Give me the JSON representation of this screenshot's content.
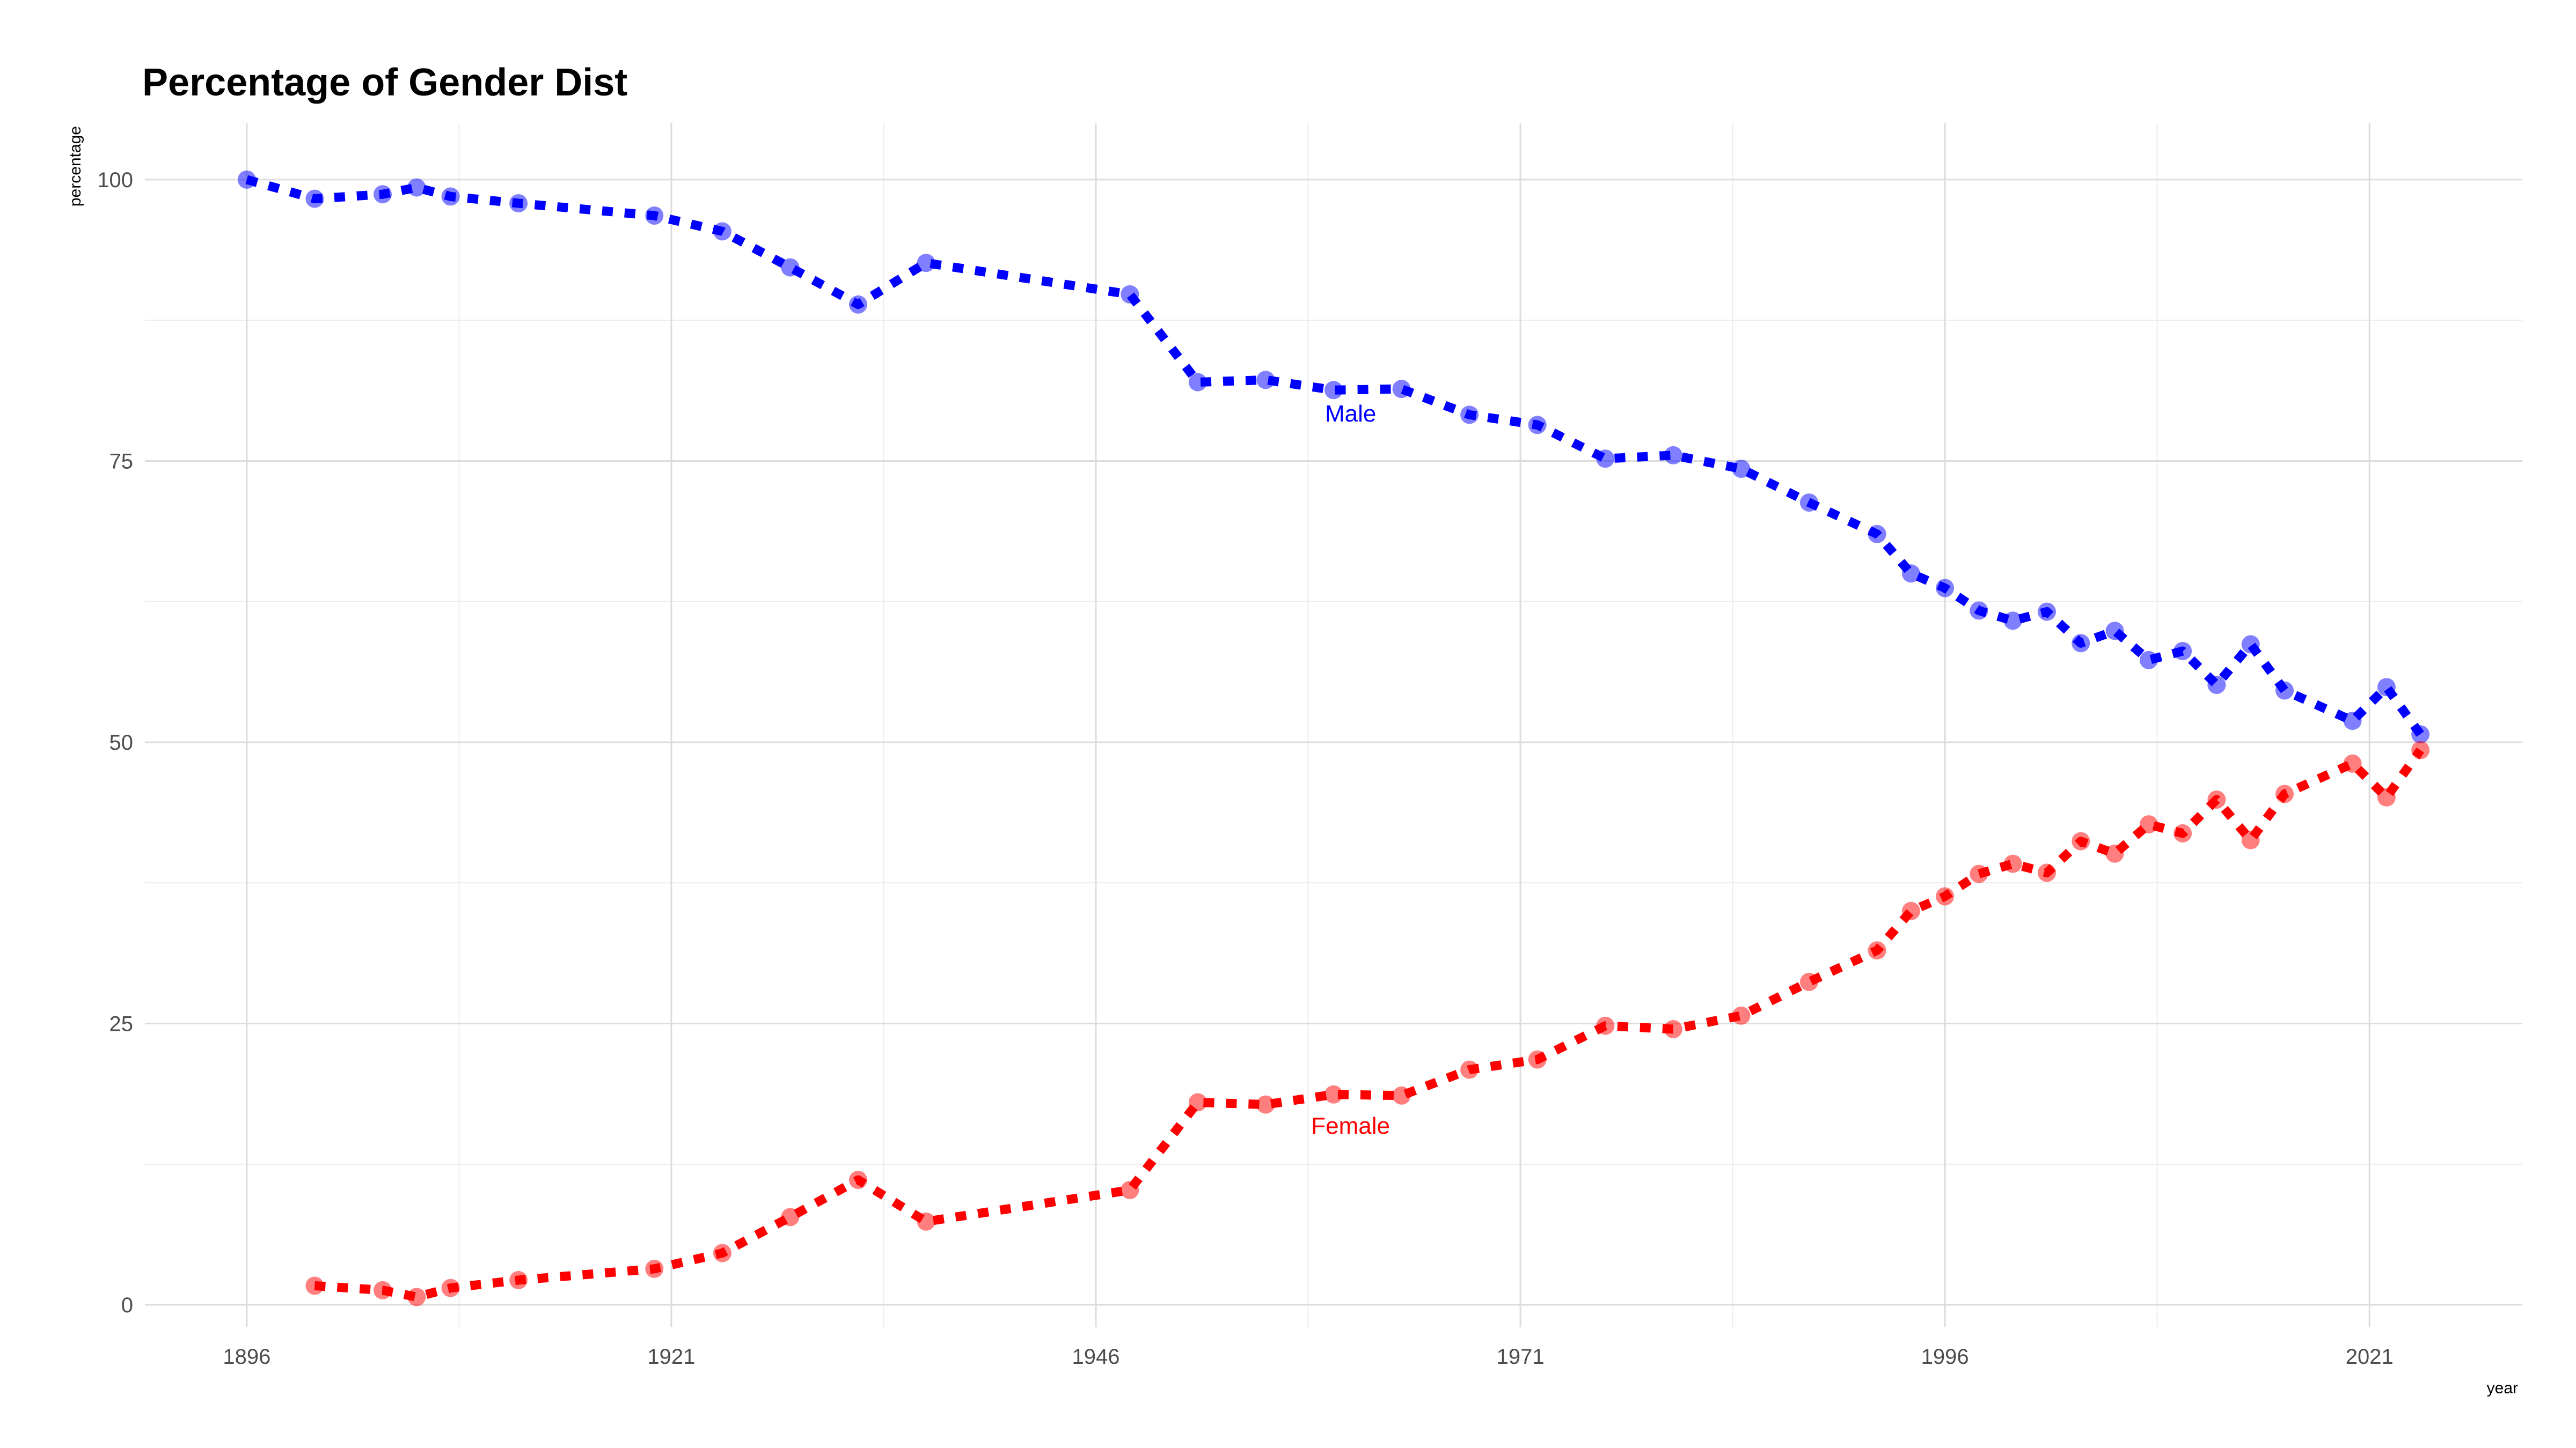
{
  "chart_data": {
    "type": "line",
    "title": "Percentage of Gender Dist",
    "xlabel": "year",
    "ylabel": "percentage",
    "xlim": [
      1890,
      2030
    ],
    "ylim": [
      -2,
      105
    ],
    "x_ticks": [
      1896,
      1921,
      1946,
      1971,
      1996,
      2021
    ],
    "y_ticks": [
      0,
      25,
      50,
      75,
      100
    ],
    "grid": true,
    "legend": "none",
    "series": [
      {
        "name": "Male",
        "color": "#0000ff",
        "label_at": [
          1961,
          78.5
        ],
        "points": [
          [
            1896,
            100
          ],
          [
            1900,
            98.3
          ],
          [
            1904,
            98.7
          ],
          [
            1906,
            99.3
          ],
          [
            1908,
            98.5
          ],
          [
            1912,
            97.9
          ],
          [
            1920,
            96.8
          ],
          [
            1924,
            95.4
          ],
          [
            1928,
            92.2
          ],
          [
            1932,
            88.9
          ],
          [
            1936,
            92.6
          ],
          [
            1948,
            89.8
          ],
          [
            1952,
            82.0
          ],
          [
            1956,
            82.2
          ],
          [
            1960,
            81.3
          ],
          [
            1964,
            81.4
          ],
          [
            1968,
            79.1
          ],
          [
            1972,
            78.2
          ],
          [
            1976,
            75.2
          ],
          [
            1980,
            75.5
          ],
          [
            1984,
            74.3
          ],
          [
            1988,
            71.3
          ],
          [
            1992,
            68.5
          ],
          [
            1994,
            65.0
          ],
          [
            1996,
            63.7
          ],
          [
            1998,
            61.7
          ],
          [
            2000,
            60.8
          ],
          [
            2002,
            61.6
          ],
          [
            2004,
            58.8
          ],
          [
            2006,
            59.9
          ],
          [
            2008,
            57.3
          ],
          [
            2010,
            58.1
          ],
          [
            2012,
            55.1
          ],
          [
            2014,
            58.7
          ],
          [
            2016,
            54.6
          ],
          [
            2020,
            51.9
          ],
          [
            2022,
            54.9
          ],
          [
            2024,
            50.7
          ]
        ]
      },
      {
        "name": "Female",
        "color": "#ff0000",
        "label_at": [
          1961,
          15.2
        ],
        "points": [
          [
            1900,
            1.7
          ],
          [
            1904,
            1.3
          ],
          [
            1906,
            0.7
          ],
          [
            1908,
            1.5
          ],
          [
            1912,
            2.2
          ],
          [
            1920,
            3.2
          ],
          [
            1924,
            4.6
          ],
          [
            1928,
            7.8
          ],
          [
            1932,
            11.1
          ],
          [
            1936,
            7.4
          ],
          [
            1948,
            10.2
          ],
          [
            1952,
            18.0
          ],
          [
            1956,
            17.8
          ],
          [
            1960,
            18.7
          ],
          [
            1964,
            18.6
          ],
          [
            1968,
            20.9
          ],
          [
            1972,
            21.8
          ],
          [
            1976,
            24.8
          ],
          [
            1980,
            24.5
          ],
          [
            1984,
            25.7
          ],
          [
            1988,
            28.7
          ],
          [
            1992,
            31.5
          ],
          [
            1994,
            35.0
          ],
          [
            1996,
            36.3
          ],
          [
            1998,
            38.3
          ],
          [
            2000,
            39.2
          ],
          [
            2002,
            38.4
          ],
          [
            2004,
            41.2
          ],
          [
            2006,
            40.1
          ],
          [
            2008,
            42.7
          ],
          [
            2010,
            41.9
          ],
          [
            2012,
            44.9
          ],
          [
            2014,
            41.3
          ],
          [
            2016,
            45.4
          ],
          [
            2020,
            48.1
          ],
          [
            2022,
            45.1
          ],
          [
            2024,
            49.3
          ]
        ]
      }
    ]
  }
}
